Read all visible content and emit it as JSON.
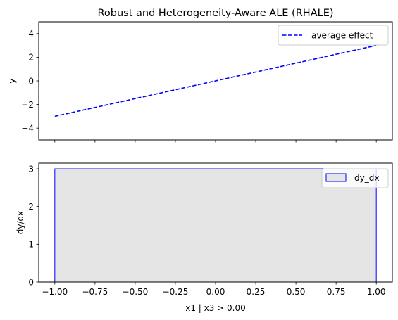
{
  "chart_data": [
    {
      "type": "line",
      "title": "Robust and Heterogeneity-Aware ALE (RHALE)",
      "xlabel": "",
      "ylabel": "y",
      "xlim": [
        -1.1,
        1.1
      ],
      "ylim": [
        -5,
        5
      ],
      "yticks": [
        -4,
        -2,
        0,
        2,
        4
      ],
      "ytick_labels": [
        "−4",
        "−2",
        "0",
        "2",
        "4"
      ],
      "xticks": [
        -1.0,
        -0.75,
        -0.5,
        -0.25,
        0.0,
        0.25,
        0.5,
        0.75,
        1.0
      ],
      "series": [
        {
          "name": "average effect",
          "style": "dashed",
          "color": "#0000ff",
          "x": [
            -1.0,
            1.0
          ],
          "y": [
            -3.0,
            3.0
          ]
        }
      ],
      "legend_position": "top-right",
      "grid": false
    },
    {
      "type": "bar",
      "title": "",
      "xlabel": "x1 | x3 > 0.00",
      "ylabel": "dy/dx",
      "xlim": [
        -1.1,
        1.1
      ],
      "ylim": [
        0,
        3.15
      ],
      "yticks": [
        0,
        1,
        2,
        3
      ],
      "ytick_labels": [
        "0",
        "1",
        "2",
        "3"
      ],
      "xticks": [
        -1.0,
        -0.75,
        -0.5,
        -0.25,
        0.0,
        0.25,
        0.5,
        0.75,
        1.0
      ],
      "xtick_labels": [
        "−1.00",
        "−0.75",
        "−0.50",
        "−0.25",
        "0.00",
        "0.25",
        "0.50",
        "0.75",
        "1.00"
      ],
      "series": [
        {
          "name": "dy_dx",
          "fill_color": "#e5e5e5",
          "edge_color": "#0000ff",
          "bins": [
            {
              "x_start": -1.0,
              "x_end": 1.0,
              "value": 3.0
            }
          ]
        }
      ],
      "legend_position": "top-right",
      "grid": false
    }
  ]
}
